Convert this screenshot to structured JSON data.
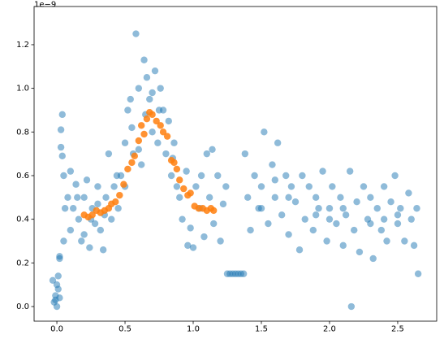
{
  "chart_data": {
    "type": "scatter",
    "y_offset_text": "1e−9",
    "xlim": [
      -0.167,
      2.786
    ],
    "ylim": [
      -0.067,
      1.375
    ],
    "xticks": [
      {
        "value": 0,
        "label": "0.0"
      },
      0.5,
      {
        "value": 1,
        "label": "1.0"
      },
      1.5,
      {
        "value": 2,
        "label": "2.0"
      },
      2.5
    ],
    "yticks": [
      {
        "value": 0,
        "label": "0.0"
      },
      0.2,
      0.4,
      0.6,
      0.8,
      {
        "value": 1,
        "label": "1.0"
      },
      1.2
    ],
    "series": [
      {
        "color": "#1f77b4",
        "x": [
          -0.02,
          -0.01,
          0,
          0.01,
          0.02,
          -0.03,
          0.01,
          0.02,
          0.02,
          0.03,
          0.03,
          0.04,
          0.04,
          0.05,
          0.05,
          0.06,
          0,
          -0.01,
          0.08,
          0.1,
          0.12,
          0.14,
          0.16,
          0.18,
          0.2,
          0.22,
          0.24,
          0.26,
          0.28,
          0.3,
          0.32,
          0.34,
          0.36,
          0.38,
          0.4,
          0.42,
          0.44,
          0.1,
          0.2,
          0.3,
          0.15,
          0.25,
          0.35,
          0.45,
          0.47,
          0.5,
          0.52,
          0.54,
          0.56,
          0.58,
          0.6,
          0.62,
          0.64,
          0.66,
          0.68,
          0.7,
          0.72,
          0.74,
          0.76,
          0.78,
          0.8,
          0.82,
          0.84,
          0.86,
          0.88,
          0.5,
          0.55,
          0.65,
          0.75,
          0.85,
          0.6,
          0.7,
          0.9,
          0.92,
          0.95,
          0.98,
          1.0,
          1.02,
          1.05,
          1.08,
          1.1,
          1.12,
          1.15,
          1.18,
          1.2,
          1.22,
          1.24,
          0.96,
          1.06,
          1.14,
          1.25,
          1.27,
          1.29,
          1.31,
          1.33,
          1.35,
          1.37,
          1.38,
          1.4,
          1.42,
          1.45,
          1.48,
          1.5,
          1.52,
          1.55,
          1.58,
          1.6,
          1.62,
          1.65,
          1.68,
          1.7,
          1.72,
          1.75,
          1.78,
          1.8,
          1.82,
          1.85,
          1.88,
          1.9,
          1.92,
          1.95,
          1.98,
          2.0,
          2.02,
          2.05,
          2.08,
          2.1,
          2.12,
          2.15,
          2.16,
          2.18,
          2.2,
          2.22,
          2.25,
          2.28,
          2.3,
          2.32,
          2.35,
          2.38,
          2.4,
          2.42,
          2.45,
          2.48,
          2.5,
          2.52,
          2.55,
          2.58,
          2.6,
          2.62,
          2.64,
          2.65,
          1.5,
          1.7,
          1.9,
          2.1,
          2.3,
          2.5,
          1.6,
          2.0,
          2.4
        ],
        "values": [
          0.02,
          0.05,
          0.1,
          0.08,
          0.04,
          0.12,
          0.14,
          0.22,
          0.23,
          0.73,
          0.81,
          0.88,
          0.69,
          0.6,
          0.3,
          0.45,
          0.0,
          0.03,
          0.5,
          0.35,
          0.45,
          0.56,
          0.4,
          0.3,
          0.5,
          0.58,
          0.27,
          0.45,
          0.38,
          0.55,
          0.35,
          0.26,
          0.5,
          0.7,
          0.4,
          0.55,
          0.6,
          0.62,
          0.33,
          0.47,
          0.5,
          0.4,
          0.42,
          0.45,
          0.6,
          0.75,
          0.9,
          0.95,
          0.7,
          1.25,
          1.0,
          0.65,
          1.13,
          1.05,
          0.95,
          0.8,
          1.08,
          0.75,
          1.0,
          0.9,
          0.7,
          0.85,
          0.6,
          0.75,
          0.55,
          0.55,
          0.82,
          0.88,
          0.9,
          0.68,
          0.72,
          0.98,
          0.5,
          0.4,
          0.62,
          0.36,
          0.27,
          0.55,
          0.45,
          0.32,
          0.7,
          0.5,
          0.38,
          0.6,
          0.3,
          0.47,
          0.55,
          0.28,
          0.6,
          0.72,
          0.15,
          0.15,
          0.15,
          0.15,
          0.15,
          0.15,
          0.15,
          0.7,
          0.5,
          0.35,
          0.6,
          0.45,
          0.55,
          0.8,
          0.38,
          0.65,
          0.5,
          0.75,
          0.42,
          0.6,
          0.33,
          0.55,
          0.48,
          0.26,
          0.6,
          0.4,
          0.55,
          0.35,
          0.5,
          0.45,
          0.62,
          0.3,
          0.45,
          0.55,
          0.38,
          0.5,
          0.28,
          0.42,
          0.62,
          0.0,
          0.35,
          0.48,
          0.25,
          0.55,
          0.4,
          0.5,
          0.22,
          0.45,
          0.35,
          0.55,
          0.3,
          0.48,
          0.6,
          0.38,
          0.45,
          0.3,
          0.52,
          0.4,
          0.28,
          0.45,
          0.15,
          0.45,
          0.5,
          0.42,
          0.45,
          0.38,
          0.42,
          0.58,
          0.4,
          0.4
        ]
      },
      {
        "color": "#ff7f0e",
        "x": [
          0.2,
          0.23,
          0.26,
          0.29,
          0.32,
          0.35,
          0.38,
          0.4,
          0.43,
          0.46,
          0.49,
          0.52,
          0.55,
          0.57,
          0.6,
          0.62,
          0.64,
          0.66,
          0.68,
          0.7,
          0.73,
          0.76,
          0.78,
          0.81,
          0.84,
          0.86,
          0.88,
          0.9,
          0.93,
          0.96,
          0.98,
          1.01,
          1.04,
          1.07,
          1.1,
          1.13,
          1.15
        ],
        "values": [
          0.42,
          0.41,
          0.42,
          0.44,
          0.43,
          0.44,
          0.45,
          0.47,
          0.48,
          0.51,
          0.56,
          0.63,
          0.66,
          0.69,
          0.76,
          0.83,
          0.79,
          0.86,
          0.89,
          0.88,
          0.85,
          0.83,
          0.8,
          0.78,
          0.67,
          0.66,
          0.63,
          0.58,
          0.54,
          0.51,
          0.52,
          0.46,
          0.45,
          0.45,
          0.44,
          0.45,
          0.44
        ]
      }
    ]
  }
}
